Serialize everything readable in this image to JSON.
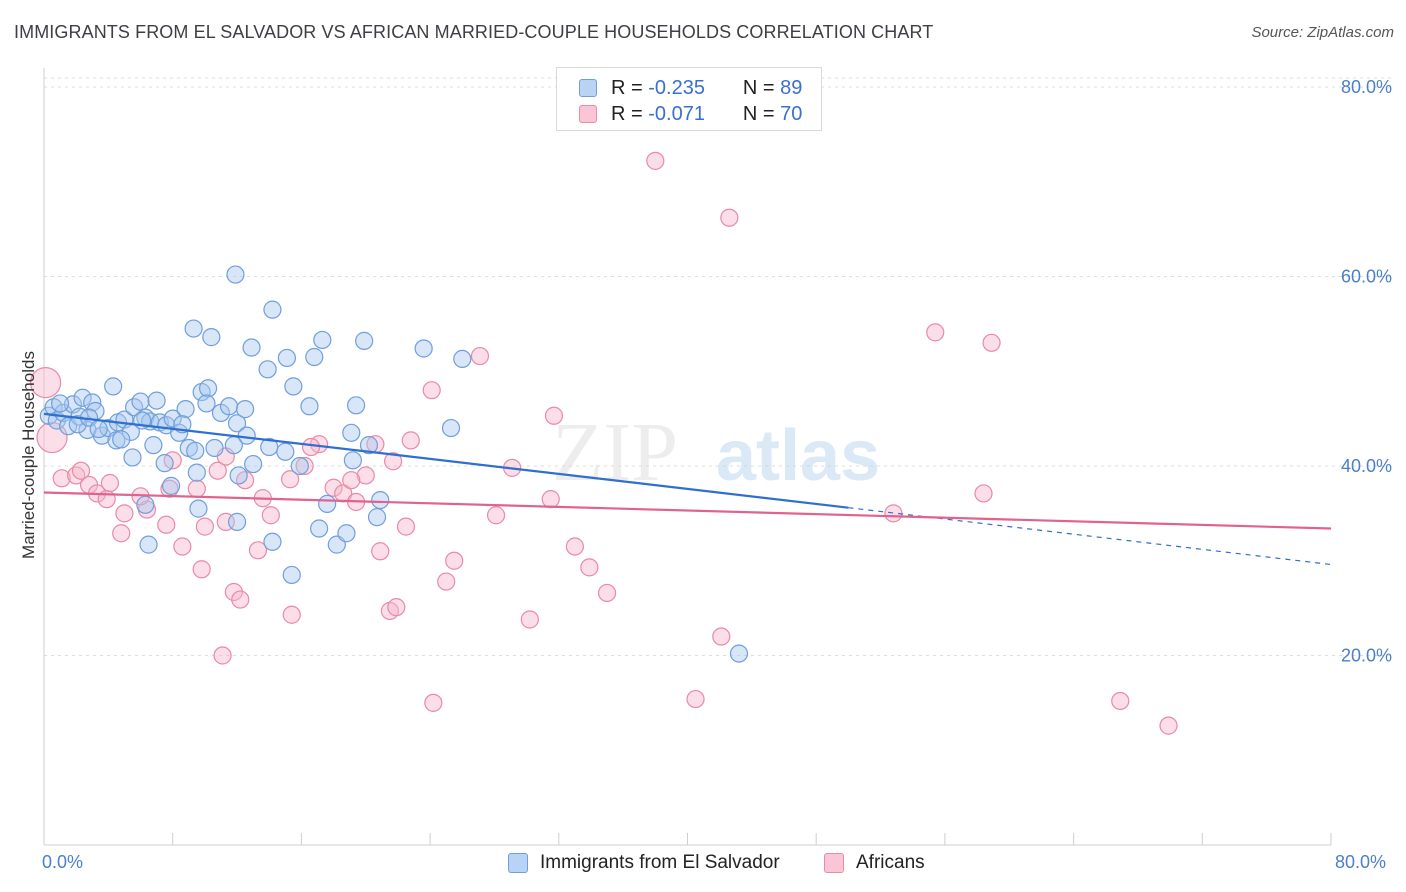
{
  "header": {
    "title": "IMMIGRANTS FROM EL SALVADOR VS AFRICAN MARRIED-COUPLE HOUSEHOLDS CORRELATION CHART",
    "source": "Source: ZipAtlas.com"
  },
  "watermark": {
    "zip": "ZIP",
    "atlas": "atlas"
  },
  "legend": {
    "blue": {
      "r_label": "R =",
      "r_value": "-0.235",
      "n_label": "N =",
      "n_value": "89"
    },
    "pink": {
      "r_label": "R =",
      "r_value": "-0.071",
      "n_label": "N =",
      "n_value": "70"
    }
  },
  "colors": {
    "blue_fill": "#a8c8f0",
    "blue_stroke": "#6f9fdc",
    "blue_line": "#2f6fce",
    "pink_fill": "#f7b6ca",
    "pink_stroke": "#e88aa8",
    "pink_line": "#e0628f",
    "tick_label": "#4a7fc9"
  },
  "chart_data": {
    "type": "scatter",
    "title": "IMMIGRANTS FROM EL SALVADOR VS AFRICAN MARRIED-COUPLE HOUSEHOLDS CORRELATION CHART",
    "xlabel": "",
    "ylabel": "Married-couple Households",
    "xlim": [
      0,
      80
    ],
    "ylim": [
      0,
      82
    ],
    "x_tick_labels": [
      "0.0%",
      "80.0%"
    ],
    "y_ticks": [
      20,
      40,
      60,
      80
    ],
    "y_tick_labels": [
      "20.0%",
      "40.0%",
      "60.0%",
      "80.0%"
    ],
    "grid": true,
    "series": [
      {
        "name": "Immigrants from El Salvador",
        "color": "blue",
        "trend": {
          "x0": 0,
          "y0": 45.5,
          "x1": 50,
          "y1": 35.6,
          "dash_x1": 80,
          "dash_y1": 29.6
        },
        "points": [
          [
            0.3,
            45.3
          ],
          [
            0.6,
            46.2
          ],
          [
            0.8,
            44.8
          ],
          [
            1.2,
            45.6
          ],
          [
            1.5,
            44.2
          ],
          [
            1.8,
            46.5
          ],
          [
            2.2,
            45.2
          ],
          [
            2.4,
            47.2
          ],
          [
            2.7,
            43.8
          ],
          [
            3.0,
            46.7
          ],
          [
            3.2,
            45.8
          ],
          [
            3.6,
            43.2
          ],
          [
            4.0,
            44.0
          ],
          [
            4.3,
            48.4
          ],
          [
            4.6,
            44.6
          ],
          [
            5.0,
            44.9
          ],
          [
            5.4,
            43.6
          ],
          [
            5.6,
            46.2
          ],
          [
            6.0,
            46.8
          ],
          [
            6.3,
            45.1
          ],
          [
            6.6,
            44.7
          ],
          [
            7.0,
            46.9
          ],
          [
            7.2,
            44.6
          ],
          [
            7.6,
            44.3
          ],
          [
            8.0,
            45.0
          ],
          [
            8.4,
            43.5
          ],
          [
            8.8,
            46.0
          ],
          [
            9.0,
            41.9
          ],
          [
            9.4,
            41.6
          ],
          [
            9.8,
            47.8
          ],
          [
            10.2,
            48.2
          ],
          [
            11.0,
            45.6
          ],
          [
            11.5,
            46.3
          ],
          [
            12.0,
            44.5
          ],
          [
            12.6,
            43.2
          ],
          [
            11.8,
            42.2
          ],
          [
            13.0,
            40.2
          ],
          [
            14.0,
            42.0
          ],
          [
            15.0,
            41.5
          ],
          [
            7.5,
            40.3
          ],
          [
            9.5,
            39.3
          ],
          [
            12.1,
            39.0
          ],
          [
            5.5,
            40.9
          ],
          [
            4.5,
            42.7
          ],
          [
            9.3,
            54.5
          ],
          [
            10.4,
            53.6
          ],
          [
            11.9,
            60.2
          ],
          [
            12.9,
            52.5
          ],
          [
            13.9,
            50.2
          ],
          [
            14.2,
            56.5
          ],
          [
            15.1,
            51.4
          ],
          [
            16.8,
            51.5
          ],
          [
            17.3,
            53.3
          ],
          [
            19.9,
            53.2
          ],
          [
            23.6,
            52.4
          ],
          [
            26.0,
            51.3
          ],
          [
            16.5,
            46.3
          ],
          [
            19.4,
            46.4
          ],
          [
            19.1,
            43.5
          ],
          [
            25.3,
            44.0
          ],
          [
            20.2,
            42.2
          ],
          [
            15.9,
            40.0
          ],
          [
            19.2,
            40.6
          ],
          [
            10.6,
            41.9
          ],
          [
            6.3,
            35.9
          ],
          [
            7.9,
            37.9
          ],
          [
            9.6,
            35.5
          ],
          [
            17.6,
            36.0
          ],
          [
            20.9,
            36.4
          ],
          [
            20.7,
            34.6
          ],
          [
            6.5,
            31.7
          ],
          [
            12.0,
            34.1
          ],
          [
            14.2,
            32.0
          ],
          [
            17.1,
            33.4
          ],
          [
            18.2,
            31.7
          ],
          [
            18.8,
            32.9
          ],
          [
            15.4,
            28.5
          ],
          [
            6.1,
            44.8
          ],
          [
            2.1,
            44.4
          ],
          [
            2.8,
            45.1
          ],
          [
            1.0,
            46.6
          ],
          [
            3.4,
            43.9
          ],
          [
            4.8,
            42.8
          ],
          [
            8.6,
            44.4
          ],
          [
            6.8,
            42.2
          ],
          [
            15.5,
            48.4
          ],
          [
            10.1,
            46.6
          ],
          [
            12.5,
            46.0
          ],
          [
            43.2,
            20.2
          ]
        ]
      },
      {
        "name": "Africans",
        "color": "pink",
        "trend": {
          "x0": 0,
          "y0": 37.2,
          "x1": 80,
          "y1": 33.4
        },
        "points": [
          [
            0.1,
            48.8
          ],
          [
            0.5,
            43.0
          ],
          [
            1.1,
            38.7
          ],
          [
            2.0,
            39.0
          ],
          [
            2.8,
            38.0
          ],
          [
            3.3,
            37.1
          ],
          [
            3.9,
            36.5
          ],
          [
            5.0,
            35.0
          ],
          [
            6.4,
            35.4
          ],
          [
            7.6,
            33.8
          ],
          [
            8.6,
            31.5
          ],
          [
            10.0,
            33.6
          ],
          [
            11.3,
            34.1
          ],
          [
            4.8,
            32.9
          ],
          [
            7.8,
            37.6
          ],
          [
            9.5,
            37.6
          ],
          [
            10.8,
            39.5
          ],
          [
            12.5,
            38.5
          ],
          [
            13.6,
            36.6
          ],
          [
            14.1,
            34.8
          ],
          [
            15.3,
            38.6
          ],
          [
            16.2,
            40.0
          ],
          [
            17.1,
            42.3
          ],
          [
            18.0,
            37.7
          ],
          [
            18.6,
            37.1
          ],
          [
            19.4,
            36.2
          ],
          [
            20.0,
            39.0
          ],
          [
            20.6,
            42.3
          ],
          [
            21.7,
            40.5
          ],
          [
            22.8,
            42.7
          ],
          [
            24.1,
            48.0
          ],
          [
            25.5,
            30.0
          ],
          [
            22.5,
            33.6
          ],
          [
            20.9,
            31.0
          ],
          [
            27.1,
            51.6
          ],
          [
            31.7,
            45.3
          ],
          [
            29.1,
            39.8
          ],
          [
            31.5,
            36.5
          ],
          [
            28.1,
            34.8
          ],
          [
            33.0,
            31.5
          ],
          [
            33.9,
            29.3
          ],
          [
            35.0,
            26.6
          ],
          [
            11.8,
            26.7
          ],
          [
            12.2,
            25.9
          ],
          [
            15.4,
            24.3
          ],
          [
            21.5,
            24.7
          ],
          [
            21.9,
            25.1
          ],
          [
            25.0,
            27.8
          ],
          [
            9.8,
            29.1
          ],
          [
            30.2,
            23.8
          ],
          [
            11.1,
            20.0
          ],
          [
            24.2,
            15.0
          ],
          [
            40.5,
            15.4
          ],
          [
            42.1,
            22.0
          ],
          [
            38.0,
            72.2
          ],
          [
            42.6,
            66.2
          ],
          [
            55.4,
            54.1
          ],
          [
            58.9,
            53.0
          ],
          [
            58.4,
            37.1
          ],
          [
            52.8,
            35.0
          ],
          [
            66.9,
            15.2
          ],
          [
            69.9,
            12.6
          ],
          [
            2.3,
            39.5
          ],
          [
            4.1,
            38.2
          ],
          [
            8.0,
            40.6
          ],
          [
            6.0,
            36.8
          ],
          [
            11.3,
            41.0
          ],
          [
            13.3,
            31.1
          ],
          [
            19.1,
            38.5
          ],
          [
            16.6,
            42.0
          ]
        ]
      }
    ]
  },
  "bottom_legend": {
    "blue_label": "Immigrants from El Salvador",
    "pink_label": "Africans"
  }
}
